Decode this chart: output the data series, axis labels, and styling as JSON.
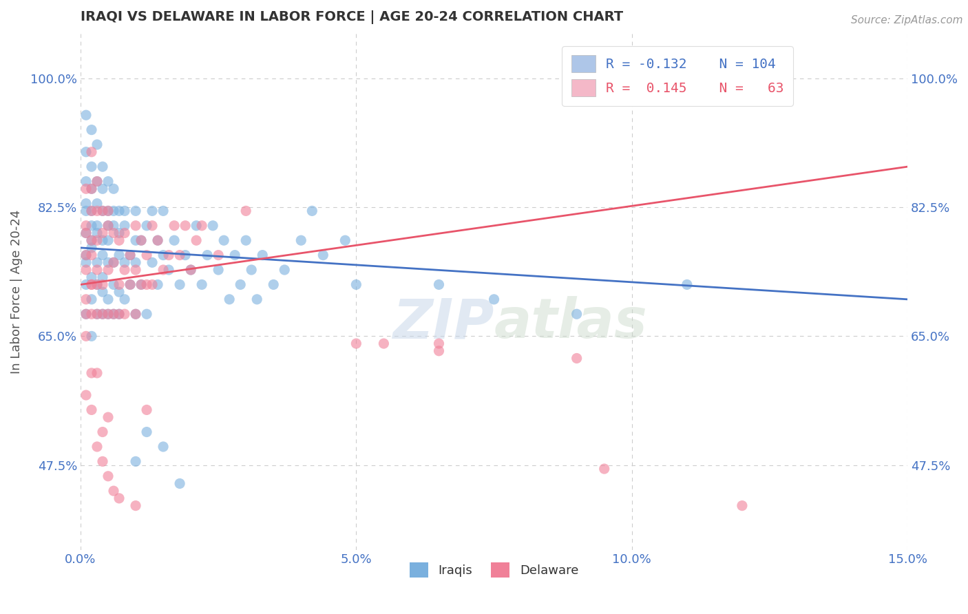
{
  "title": "IRAQI VS DELAWARE IN LABOR FORCE | AGE 20-24 CORRELATION CHART",
  "source": "Source: ZipAtlas.com",
  "ylabel": "In Labor Force | Age 20-24",
  "xlim": [
    0.0,
    0.15
  ],
  "ylim": [
    0.36,
    1.06
  ],
  "yticks": [
    0.475,
    0.65,
    0.825,
    1.0
  ],
  "ytick_labels": [
    "47.5%",
    "65.0%",
    "82.5%",
    "100.0%"
  ],
  "xticks": [
    0.0,
    0.05,
    0.1,
    0.15
  ],
  "xtick_labels": [
    "0.0%",
    "5.0%",
    "10.0%",
    "15.0%"
  ],
  "watermark_zip": "ZIP",
  "watermark_atlas": "atlas",
  "iraqis_color": "#7ab0de",
  "delaware_color": "#f08098",
  "background_color": "#ffffff",
  "grid_color": "#cccccc",
  "title_color": "#333333",
  "axis_label_color": "#555555",
  "tick_color": "#4472c4",
  "iraqis_line_color": "#4472c4",
  "delaware_line_color": "#e8546a",
  "legend_box_iraqis": "#aec6e8",
  "legend_box_delaware": "#f4b8c8",
  "iraqis_scatter": [
    [
      0.001,
      0.76
    ],
    [
      0.001,
      0.79
    ],
    [
      0.001,
      0.82
    ],
    [
      0.001,
      0.86
    ],
    [
      0.001,
      0.72
    ],
    [
      0.001,
      0.68
    ],
    [
      0.001,
      0.9
    ],
    [
      0.001,
      0.95
    ],
    [
      0.001,
      0.83
    ],
    [
      0.001,
      0.75
    ],
    [
      0.002,
      0.78
    ],
    [
      0.002,
      0.73
    ],
    [
      0.002,
      0.85
    ],
    [
      0.002,
      0.8
    ],
    [
      0.002,
      0.7
    ],
    [
      0.002,
      0.88
    ],
    [
      0.002,
      0.65
    ],
    [
      0.002,
      0.93
    ],
    [
      0.002,
      0.82
    ],
    [
      0.002,
      0.77
    ],
    [
      0.003,
      0.79
    ],
    [
      0.003,
      0.72
    ],
    [
      0.003,
      0.86
    ],
    [
      0.003,
      0.83
    ],
    [
      0.003,
      0.68
    ],
    [
      0.003,
      0.91
    ],
    [
      0.003,
      0.75
    ],
    [
      0.003,
      0.8
    ],
    [
      0.004,
      0.78
    ],
    [
      0.004,
      0.82
    ],
    [
      0.004,
      0.71
    ],
    [
      0.004,
      0.88
    ],
    [
      0.004,
      0.76
    ],
    [
      0.004,
      0.85
    ],
    [
      0.004,
      0.68
    ],
    [
      0.004,
      0.73
    ],
    [
      0.005,
      0.8
    ],
    [
      0.005,
      0.75
    ],
    [
      0.005,
      0.82
    ],
    [
      0.005,
      0.7
    ],
    [
      0.005,
      0.86
    ],
    [
      0.005,
      0.68
    ],
    [
      0.005,
      0.78
    ],
    [
      0.006,
      0.75
    ],
    [
      0.006,
      0.8
    ],
    [
      0.006,
      0.72
    ],
    [
      0.006,
      0.85
    ],
    [
      0.006,
      0.68
    ],
    [
      0.006,
      0.82
    ],
    [
      0.007,
      0.76
    ],
    [
      0.007,
      0.79
    ],
    [
      0.007,
      0.71
    ],
    [
      0.007,
      0.82
    ],
    [
      0.007,
      0.68
    ],
    [
      0.008,
      0.75
    ],
    [
      0.008,
      0.8
    ],
    [
      0.008,
      0.7
    ],
    [
      0.008,
      0.82
    ],
    [
      0.009,
      0.76
    ],
    [
      0.009,
      0.72
    ],
    [
      0.01,
      0.78
    ],
    [
      0.01,
      0.68
    ],
    [
      0.01,
      0.82
    ],
    [
      0.01,
      0.75
    ],
    [
      0.011,
      0.78
    ],
    [
      0.011,
      0.72
    ],
    [
      0.012,
      0.8
    ],
    [
      0.012,
      0.68
    ],
    [
      0.013,
      0.82
    ],
    [
      0.013,
      0.75
    ],
    [
      0.014,
      0.72
    ],
    [
      0.014,
      0.78
    ],
    [
      0.015,
      0.76
    ],
    [
      0.015,
      0.82
    ],
    [
      0.016,
      0.74
    ],
    [
      0.017,
      0.78
    ],
    [
      0.018,
      0.72
    ],
    [
      0.019,
      0.76
    ],
    [
      0.02,
      0.74
    ],
    [
      0.021,
      0.8
    ],
    [
      0.022,
      0.72
    ],
    [
      0.023,
      0.76
    ],
    [
      0.024,
      0.8
    ],
    [
      0.025,
      0.74
    ],
    [
      0.026,
      0.78
    ],
    [
      0.027,
      0.7
    ],
    [
      0.028,
      0.76
    ],
    [
      0.029,
      0.72
    ],
    [
      0.03,
      0.78
    ],
    [
      0.031,
      0.74
    ],
    [
      0.032,
      0.7
    ],
    [
      0.033,
      0.76
    ],
    [
      0.035,
      0.72
    ],
    [
      0.037,
      0.74
    ],
    [
      0.04,
      0.78
    ],
    [
      0.042,
      0.82
    ],
    [
      0.044,
      0.76
    ],
    [
      0.048,
      0.78
    ],
    [
      0.05,
      0.72
    ],
    [
      0.01,
      0.48
    ],
    [
      0.012,
      0.52
    ],
    [
      0.015,
      0.5
    ],
    [
      0.018,
      0.45
    ],
    [
      0.065,
      0.72
    ],
    [
      0.075,
      0.7
    ],
    [
      0.09,
      0.68
    ],
    [
      0.11,
      0.72
    ]
  ],
  "delaware_scatter": [
    [
      0.001,
      0.76
    ],
    [
      0.001,
      0.8
    ],
    [
      0.001,
      0.7
    ],
    [
      0.001,
      0.85
    ],
    [
      0.001,
      0.68
    ],
    [
      0.001,
      0.74
    ],
    [
      0.001,
      0.65
    ],
    [
      0.001,
      0.79
    ],
    [
      0.002,
      0.82
    ],
    [
      0.002,
      0.72
    ],
    [
      0.002,
      0.78
    ],
    [
      0.002,
      0.68
    ],
    [
      0.002,
      0.85
    ],
    [
      0.002,
      0.76
    ],
    [
      0.002,
      0.72
    ],
    [
      0.002,
      0.9
    ],
    [
      0.003,
      0.78
    ],
    [
      0.003,
      0.82
    ],
    [
      0.003,
      0.72
    ],
    [
      0.003,
      0.68
    ],
    [
      0.003,
      0.86
    ],
    [
      0.003,
      0.74
    ],
    [
      0.004,
      0.79
    ],
    [
      0.004,
      0.72
    ],
    [
      0.004,
      0.82
    ],
    [
      0.004,
      0.68
    ],
    [
      0.005,
      0.8
    ],
    [
      0.005,
      0.74
    ],
    [
      0.005,
      0.68
    ],
    [
      0.005,
      0.82
    ],
    [
      0.006,
      0.75
    ],
    [
      0.006,
      0.79
    ],
    [
      0.006,
      0.68
    ],
    [
      0.007,
      0.72
    ],
    [
      0.007,
      0.78
    ],
    [
      0.007,
      0.68
    ],
    [
      0.008,
      0.74
    ],
    [
      0.008,
      0.79
    ],
    [
      0.008,
      0.68
    ],
    [
      0.009,
      0.76
    ],
    [
      0.009,
      0.72
    ],
    [
      0.01,
      0.74
    ],
    [
      0.01,
      0.68
    ],
    [
      0.01,
      0.8
    ],
    [
      0.011,
      0.72
    ],
    [
      0.011,
      0.78
    ],
    [
      0.012,
      0.72
    ],
    [
      0.012,
      0.76
    ],
    [
      0.013,
      0.8
    ],
    [
      0.013,
      0.72
    ],
    [
      0.014,
      0.78
    ],
    [
      0.015,
      0.74
    ],
    [
      0.016,
      0.76
    ],
    [
      0.017,
      0.8
    ],
    [
      0.018,
      0.76
    ],
    [
      0.019,
      0.8
    ],
    [
      0.02,
      0.74
    ],
    [
      0.021,
      0.78
    ],
    [
      0.022,
      0.8
    ],
    [
      0.025,
      0.76
    ],
    [
      0.03,
      0.82
    ],
    [
      0.05,
      0.64
    ],
    [
      0.055,
      0.64
    ],
    [
      0.001,
      0.57
    ],
    [
      0.002,
      0.6
    ],
    [
      0.002,
      0.55
    ],
    [
      0.003,
      0.5
    ],
    [
      0.003,
      0.6
    ],
    [
      0.004,
      0.52
    ],
    [
      0.004,
      0.48
    ],
    [
      0.005,
      0.46
    ],
    [
      0.005,
      0.54
    ],
    [
      0.006,
      0.44
    ],
    [
      0.007,
      0.43
    ],
    [
      0.01,
      0.42
    ],
    [
      0.012,
      0.55
    ],
    [
      0.065,
      0.64
    ],
    [
      0.065,
      0.63
    ],
    [
      0.09,
      0.62
    ],
    [
      0.095,
      0.47
    ],
    [
      0.12,
      0.42
    ]
  ]
}
